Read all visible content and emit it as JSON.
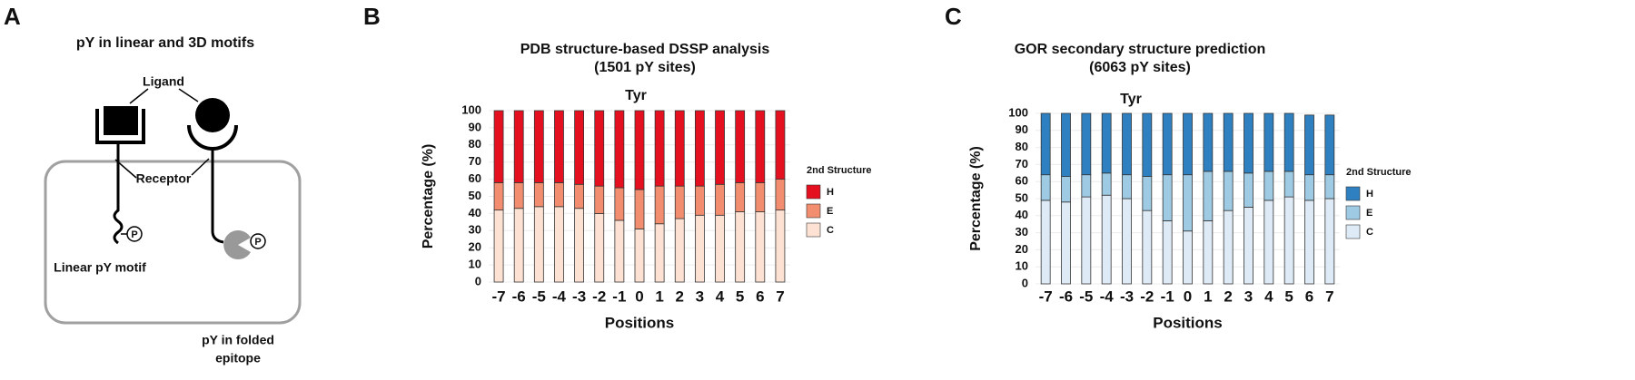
{
  "diagram": {
    "label": "A",
    "title": "pY in linear and 3D motifs",
    "ligand": "Ligand",
    "receptor": "Receptor",
    "phospho": "P",
    "linear_motif": "Linear pY motif",
    "folded_motif": [
      "pY in folded",
      "epitope"
    ]
  },
  "chart_data": [
    {
      "type": "bar",
      "stacked": true,
      "label": "B",
      "title": "PDB structure-based DSSP analysis",
      "subtitle": "(1501 pY sites)",
      "annotation": "Tyr",
      "x_label": "Positions",
      "y_label": "Percentage (%)",
      "legend_title": "2nd Structure",
      "categories": [
        "-7",
        "-6",
        "-5",
        "-4",
        "-3",
        "-2",
        "-1",
        "0",
        "1",
        "2",
        "3",
        "4",
        "5",
        "6",
        "7"
      ],
      "series": [
        {
          "name": "C",
          "color": "#fde2d4",
          "values": [
            42,
            43,
            44,
            44,
            43,
            40,
            36,
            31,
            34,
            37,
            39,
            39,
            41,
            41,
            42
          ]
        },
        {
          "name": "E",
          "color": "#f28e6f",
          "values": [
            16,
            15,
            14,
            14,
            14,
            16,
            19,
            23,
            22,
            19,
            17,
            18,
            17,
            17,
            18
          ]
        },
        {
          "name": "H",
          "color": "#e5101f",
          "values": [
            42,
            42,
            42,
            42,
            43,
            44,
            45,
            46,
            44,
            44,
            44,
            43,
            42,
            42,
            40
          ]
        }
      ],
      "ylim": [
        0,
        100
      ],
      "yticks": [
        0,
        10,
        20,
        30,
        40,
        50,
        60,
        70,
        80,
        90,
        100
      ],
      "grid": true
    },
    {
      "type": "bar",
      "stacked": true,
      "label": "C",
      "title": "GOR secondary structure prediction",
      "subtitle": "(6063 pY sites)",
      "annotation": "Tyr",
      "x_label": "Positions",
      "y_label": "Percentage (%)",
      "legend_title": "2nd Structure",
      "categories": [
        "-7",
        "-6",
        "-5",
        "-4",
        "-3",
        "-2",
        "-1",
        "0",
        "1",
        "2",
        "3",
        "4",
        "5",
        "6",
        "7"
      ],
      "series": [
        {
          "name": "C",
          "color": "#deebf7",
          "values": [
            49,
            48,
            51,
            52,
            50,
            43,
            37,
            31,
            37,
            43,
            45,
            49,
            51,
            49,
            50
          ]
        },
        {
          "name": "E",
          "color": "#9ecae3",
          "values": [
            15,
            15,
            13,
            13,
            14,
            20,
            27,
            33,
            29,
            23,
            20,
            17,
            15,
            15,
            14
          ]
        },
        {
          "name": "H",
          "color": "#2f80c0",
          "values": [
            36,
            37,
            36,
            35,
            36,
            37,
            36,
            36,
            34,
            34,
            35,
            34,
            34,
            35,
            35
          ]
        }
      ],
      "ylim": [
        0,
        100
      ],
      "yticks": [
        0,
        10,
        20,
        30,
        40,
        50,
        60,
        70,
        80,
        90,
        100
      ],
      "grid": true
    }
  ]
}
